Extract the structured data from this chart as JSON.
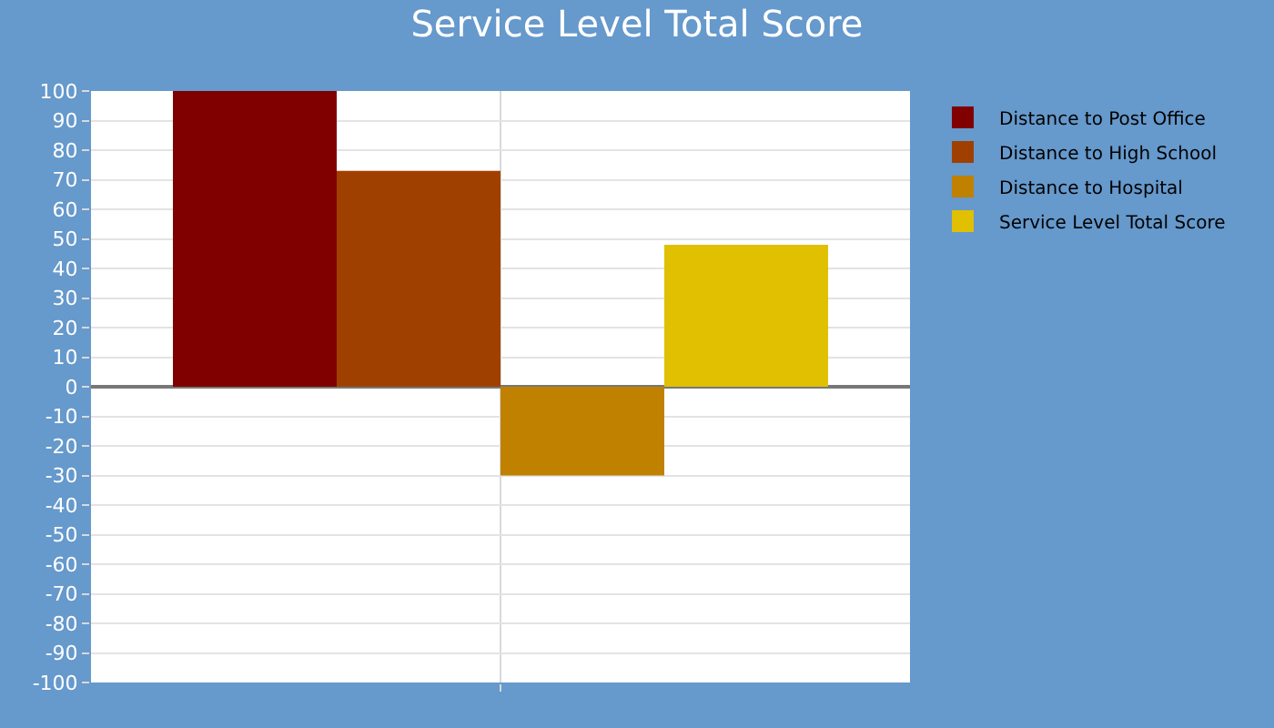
{
  "chart_data": {
    "type": "bar",
    "title": "Service Level Total Score",
    "categories": [
      null
    ],
    "series": [
      {
        "name": "Distance to Post Office",
        "color": "#800000",
        "values": [
          100
        ]
      },
      {
        "name": "Distance to High School",
        "color": "#a04000",
        "values": [
          73
        ]
      },
      {
        "name": "Distance to Hospital",
        "color": "#c08000",
        "values": [
          -30
        ]
      },
      {
        "name": "Service Level Total Score",
        "color": "#e0c000",
        "values": [
          48
        ]
      }
    ],
    "ylim": [
      -100,
      100
    ],
    "yticks": [
      -100,
      -90,
      -80,
      -70,
      -60,
      -50,
      -40,
      -30,
      -20,
      -10,
      0,
      10,
      20,
      30,
      40,
      50,
      60,
      70,
      80,
      90,
      100
    ],
    "grid": true,
    "legend": "top right"
  }
}
